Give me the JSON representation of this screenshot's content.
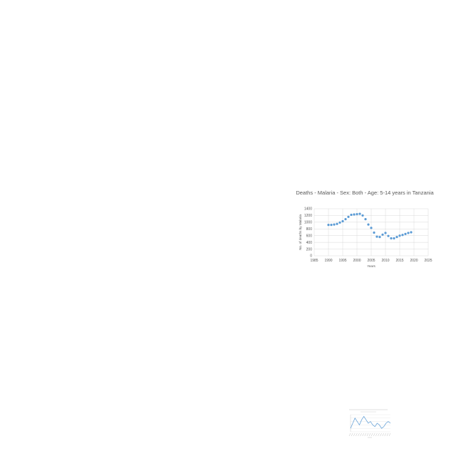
{
  "chart_data": {
    "type": "scatter",
    "title": "Deaths - Malaria - Sex: Both - Age: 5-14 years in Tanzania",
    "xlabel": "Years",
    "ylabel": "No. of deaths by Malaria",
    "xlim": [
      1985,
      2025
    ],
    "ylim": [
      0,
      1400
    ],
    "xticks": [
      1985,
      1990,
      1995,
      2000,
      2005,
      2010,
      2015,
      2020,
      2025
    ],
    "yticks": [
      0,
      200,
      400,
      600,
      800,
      1000,
      1200,
      1400
    ],
    "grid": true,
    "legend": "none",
    "series": [
      {
        "color": "#5b9bd5",
        "x": [
          1990,
          1991,
          1992,
          1993,
          1994,
          1995,
          1996,
          1997,
          1998,
          1999,
          2000,
          2001,
          2002,
          2003,
          2004,
          2005,
          2006,
          2007,
          2008,
          2009,
          2010,
          2011,
          2012,
          2013,
          2014,
          2015,
          2016,
          2017,
          2018,
          2019
        ],
        "y": [
          920,
          920,
          930,
          950,
          990,
          1030,
          1090,
          1160,
          1220,
          1230,
          1240,
          1250,
          1200,
          1090,
          930,
          830,
          690,
          570,
          560,
          630,
          680,
          590,
          520,
          520,
          560,
          600,
          620,
          650,
          680,
          700
        ]
      }
    ]
  },
  "thumbnail": {
    "type": "line",
    "color": "#5b9bd5",
    "values": [
      2,
      5,
      8,
      6,
      4,
      7,
      9,
      7,
      5,
      6,
      4,
      3,
      5,
      4,
      2,
      3,
      5,
      6,
      5
    ]
  }
}
